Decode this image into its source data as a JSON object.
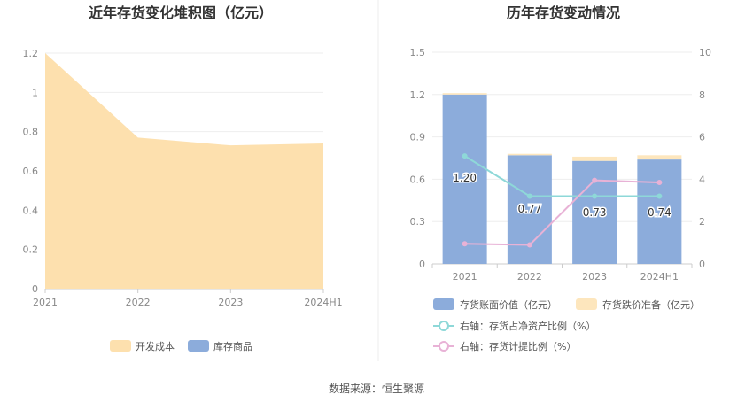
{
  "source": "数据来源：恒生聚源",
  "colors": {
    "dev_cost": "#fde0ae",
    "inventory_goods": "#8cacdb",
    "book_value": "#8cacdb",
    "impairment": "#fde6bd",
    "net_asset_ratio": "#8ed8d8",
    "provision_ratio": "#e8b2d6"
  },
  "chart_data": [
    {
      "id": "left",
      "type": "area",
      "title": "近年存货变化堆积图（亿元）",
      "categories": [
        "2021",
        "2022",
        "2023",
        "2024H1"
      ],
      "series": [
        {
          "name": "开发成本",
          "values": [
            1.2,
            0.77,
            0.73,
            0.74
          ]
        },
        {
          "name": "库存商品",
          "values": [
            0,
            0,
            0,
            0
          ]
        }
      ],
      "ylim": [
        0,
        1.2
      ],
      "yticks": [
        "0",
        "0.2",
        "0.4",
        "0.6",
        "0.8",
        "1",
        "1.2"
      ],
      "grid": true,
      "legend": "bottom"
    },
    {
      "id": "right",
      "type": "bar",
      "title": "历年存货变动情况",
      "categories": [
        "2021",
        "2022",
        "2023",
        "2024H1"
      ],
      "series": [
        {
          "name": "存货账面价值（亿元）",
          "values": [
            1.2,
            0.77,
            0.73,
            0.74
          ],
          "labels": [
            "1.20",
            "0.77",
            "0.73",
            "0.74"
          ]
        },
        {
          "name": "存货跌价准备（亿元）",
          "values": [
            0.01,
            0.01,
            0.03,
            0.03
          ]
        },
        {
          "name": "右轴：存货占净资产比例（%）",
          "axis": "right",
          "values": [
            5.1,
            3.2,
            3.2,
            3.2
          ]
        },
        {
          "name": "右轴：存货计提比例（%）",
          "axis": "right",
          "values": [
            0.95,
            0.9,
            3.95,
            3.85
          ]
        }
      ],
      "ylim": [
        0,
        1.5
      ],
      "yticks": [
        "0",
        "0.3",
        "0.6",
        "0.9",
        "1.2",
        "1.5"
      ],
      "y2lim": [
        0,
        10
      ],
      "y2ticks": [
        "0",
        "2",
        "4",
        "6",
        "8",
        "10"
      ],
      "grid": true,
      "legend": "bottom"
    }
  ]
}
